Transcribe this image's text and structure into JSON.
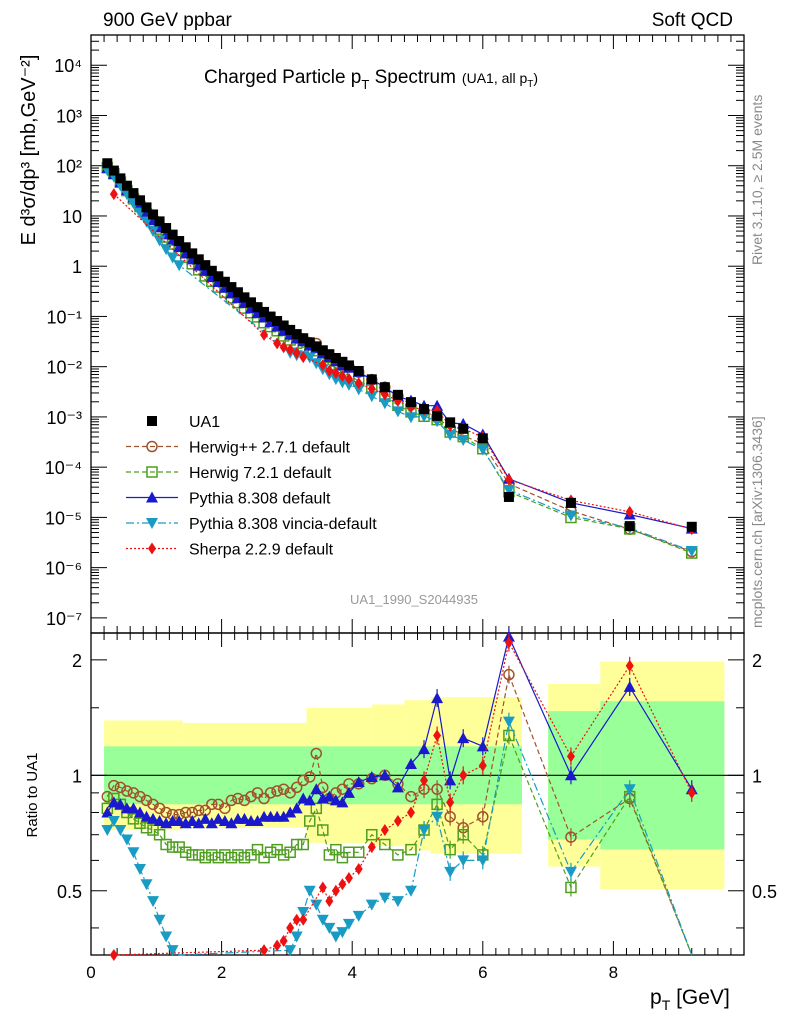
{
  "header": {
    "left": "900 GeV ppbar",
    "right": "Soft QCD",
    "title": "Charged Particle p",
    "title_sub": "T",
    "title_tail": " Spectrum",
    "title_small": "(UA1, all p",
    "title_small_sub": "T",
    "title_small_tail": ")"
  },
  "side": {
    "rivet": "Rivet 3.1.10, ≥ 2.5M events",
    "mcplots": "mcplots.cern.ch [arXiv:1306.3436]"
  },
  "analysis_label": "UA1_1990_S2044935",
  "axes": {
    "ylabel_main": "E d³σ/dp³ [mb,GeV⁻²]",
    "ylabel_ratio": "Ratio to UA1",
    "xlabel": "p",
    "xlabel_sub": "T",
    "xlabel_tail": " [GeV]"
  },
  "chart_data": {
    "type": "scatter",
    "xlim": [
      0,
      10
    ],
    "main_ylim": [
      5e-08,
      40000
    ],
    "main_yscale": "log",
    "ratio_ylim": [
      0.34,
      2.35
    ],
    "ratio_yscale": "log",
    "main_yticks": [
      "10⁻⁷",
      "10⁻⁶",
      "10⁻⁵",
      "10⁻⁴",
      "10⁻³",
      "10⁻²",
      "10⁻¹",
      "1",
      "10",
      "10²",
      "10³",
      "10⁴"
    ],
    "ratio_yticks": [
      "0.5",
      "1",
      "2"
    ],
    "xticks": [
      "0",
      "2",
      "4",
      "6",
      "8"
    ],
    "legend_position": "center-left",
    "reference": {
      "name": "UA1",
      "x": [
        0.25,
        0.35,
        0.45,
        0.55,
        0.65,
        0.75,
        0.85,
        0.95,
        1.05,
        1.15,
        1.25,
        1.35,
        1.45,
        1.55,
        1.65,
        1.75,
        1.85,
        1.95,
        2.05,
        2.15,
        2.25,
        2.35,
        2.45,
        2.55,
        2.65,
        2.75,
        2.85,
        2.95,
        3.05,
        3.15,
        3.25,
        3.35,
        3.45,
        3.55,
        3.65,
        3.75,
        3.85,
        3.95,
        4.1,
        4.3,
        4.5,
        4.7,
        4.9,
        5.1,
        5.3,
        5.5,
        5.7,
        6.0,
        6.4,
        7.35,
        8.25,
        9.2
      ],
      "y": [
        112,
        80,
        56,
        40,
        28.5,
        20.5,
        14.8,
        10.7,
        7.8,
        5.75,
        4.25,
        3.17,
        2.38,
        1.8,
        1.37,
        1.05,
        0.81,
        0.63,
        0.49,
        0.384,
        0.303,
        0.24,
        0.191,
        0.153,
        0.123,
        0.0995,
        0.081,
        0.066,
        0.054,
        0.0445,
        0.0368,
        0.0305,
        0.0254,
        0.0212,
        0.0177,
        0.0149,
        0.0125,
        0.0106,
        0.0082,
        0.0056,
        0.0039,
        0.00275,
        0.00197,
        0.00143,
        0.00105,
        0.00078,
        0.00058,
        0.000375,
        2.55e-05,
        1.95e-05,
        6.7e-06,
        6.5e-06
      ],
      "band_inner": [
        [
          0.2,
          5.2,
          1.19
        ],
        [
          5.2,
          5.5,
          1.19
        ],
        [
          5.5,
          6.6,
          1.19
        ],
        [
          7,
          7.8,
          1.47
        ],
        [
          7.8,
          9.7,
          1.56
        ]
      ]
    },
    "series": [
      {
        "name": "Herwig++ 2.7.1 default",
        "color": "#a0522d",
        "marker": "open-circle",
        "dash": "5,3",
        "ratio_points": [
          [
            0.25,
            0.88
          ],
          [
            0.35,
            0.94
          ],
          [
            0.45,
            0.93
          ],
          [
            0.55,
            0.91
          ],
          [
            0.65,
            0.9
          ],
          [
            0.75,
            0.88
          ],
          [
            0.85,
            0.86
          ],
          [
            0.95,
            0.84
          ],
          [
            1.05,
            0.82
          ],
          [
            1.15,
            0.8
          ],
          [
            1.25,
            0.79
          ],
          [
            1.35,
            0.79
          ],
          [
            1.45,
            0.8
          ],
          [
            1.55,
            0.8
          ],
          [
            1.65,
            0.81
          ],
          [
            1.75,
            0.81
          ],
          [
            1.85,
            0.84
          ],
          [
            1.95,
            0.84
          ],
          [
            2.05,
            0.82
          ],
          [
            2.15,
            0.86
          ],
          [
            2.25,
            0.87
          ],
          [
            2.35,
            0.86
          ],
          [
            2.45,
            0.88
          ],
          [
            2.55,
            0.9
          ],
          [
            2.65,
            0.87
          ],
          [
            2.75,
            0.9
          ],
          [
            2.85,
            0.91
          ],
          [
            2.95,
            0.92
          ],
          [
            3.05,
            0.9
          ],
          [
            3.15,
            0.93
          ],
          [
            3.25,
            0.97
          ],
          [
            3.35,
            0.99
          ],
          [
            3.45,
            1.14
          ],
          [
            3.55,
            0.93
          ],
          [
            3.65,
            0.87
          ],
          [
            3.75,
            0.9
          ],
          [
            3.85,
            0.92
          ],
          [
            3.95,
            0.95
          ],
          [
            4.1,
            0.95
          ],
          [
            4.3,
            0.98
          ],
          [
            4.5,
            1.0
          ],
          [
            4.7,
            0.95
          ],
          [
            4.9,
            0.88
          ],
          [
            5.1,
            0.92
          ],
          [
            5.3,
            0.92
          ],
          [
            5.5,
            0.78
          ],
          [
            5.7,
            0.73
          ],
          [
            6.0,
            0.78
          ],
          [
            6.4,
            1.83
          ],
          [
            7.35,
            0.69
          ],
          [
            8.25,
            0.87
          ],
          [
            9.2,
            0.32
          ]
        ]
      },
      {
        "name": "Herwig 7.2.1 default",
        "color": "#4f9e1f",
        "marker": "open-square",
        "dash": "5,3",
        "ratio_points": [
          [
            0.25,
            0.82
          ],
          [
            0.35,
            0.87
          ],
          [
            0.45,
            0.84
          ],
          [
            0.55,
            0.8
          ],
          [
            0.65,
            0.77
          ],
          [
            0.75,
            0.75
          ],
          [
            0.85,
            0.73
          ],
          [
            0.95,
            0.72
          ],
          [
            1.05,
            0.7
          ],
          [
            1.15,
            0.66
          ],
          [
            1.25,
            0.65
          ],
          [
            1.35,
            0.65
          ],
          [
            1.45,
            0.63
          ],
          [
            1.55,
            0.62
          ],
          [
            1.65,
            0.62
          ],
          [
            1.75,
            0.61
          ],
          [
            1.85,
            0.62
          ],
          [
            1.95,
            0.61
          ],
          [
            2.05,
            0.62
          ],
          [
            2.15,
            0.61
          ],
          [
            2.25,
            0.62
          ],
          [
            2.35,
            0.61
          ],
          [
            2.45,
            0.62
          ],
          [
            2.55,
            0.64
          ],
          [
            2.65,
            0.61
          ],
          [
            2.75,
            0.63
          ],
          [
            2.85,
            0.64
          ],
          [
            2.95,
            0.62
          ],
          [
            3.05,
            0.63
          ],
          [
            3.15,
            0.66
          ],
          [
            3.25,
            0.66
          ],
          [
            3.35,
            0.76
          ],
          [
            3.45,
            0.82
          ],
          [
            3.55,
            0.72
          ],
          [
            3.65,
            0.62
          ],
          [
            3.75,
            0.64
          ],
          [
            3.85,
            0.61
          ],
          [
            3.95,
            0.63
          ],
          [
            4.1,
            0.63
          ],
          [
            4.3,
            0.7
          ],
          [
            4.5,
            0.66
          ],
          [
            4.7,
            0.62
          ],
          [
            4.9,
            0.64
          ],
          [
            5.1,
            0.72
          ],
          [
            5.3,
            0.84
          ],
          [
            5.5,
            0.64
          ],
          [
            5.7,
            0.7
          ],
          [
            6.0,
            0.62
          ],
          [
            6.4,
            1.27
          ],
          [
            7.35,
            0.51
          ],
          [
            8.25,
            0.88
          ],
          [
            9.2,
            0.3
          ]
        ]
      },
      {
        "name": "Pythia 8.308 default",
        "color": "#1a1acc",
        "marker": "filled-triangle-up",
        "dash": "",
        "ratio_points": [
          [
            0.25,
            0.8
          ],
          [
            0.35,
            0.85
          ],
          [
            0.45,
            0.84
          ],
          [
            0.55,
            0.82
          ],
          [
            0.65,
            0.82
          ],
          [
            0.75,
            0.8
          ],
          [
            0.85,
            0.78
          ],
          [
            0.95,
            0.77
          ],
          [
            1.05,
            0.76
          ],
          [
            1.15,
            0.75
          ],
          [
            1.25,
            0.76
          ],
          [
            1.35,
            0.76
          ],
          [
            1.45,
            0.75
          ],
          [
            1.55,
            0.76
          ],
          [
            1.65,
            0.75
          ],
          [
            1.75,
            0.77
          ],
          [
            1.85,
            0.75
          ],
          [
            1.95,
            0.77
          ],
          [
            2.05,
            0.76
          ],
          [
            2.15,
            0.75
          ],
          [
            2.25,
            0.77
          ],
          [
            2.35,
            0.77
          ],
          [
            2.45,
            0.76
          ],
          [
            2.55,
            0.76
          ],
          [
            2.65,
            0.78
          ],
          [
            2.75,
            0.78
          ],
          [
            2.85,
            0.78
          ],
          [
            2.95,
            0.78
          ],
          [
            3.05,
            0.8
          ],
          [
            3.15,
            0.82
          ],
          [
            3.25,
            0.87
          ],
          [
            3.35,
            0.86
          ],
          [
            3.45,
            0.92
          ],
          [
            3.55,
            0.87
          ],
          [
            3.65,
            0.88
          ],
          [
            3.75,
            0.86
          ],
          [
            3.85,
            0.85
          ],
          [
            3.95,
            0.9
          ],
          [
            4.1,
            0.96
          ],
          [
            4.3,
            0.99
          ],
          [
            4.5,
            1.0
          ],
          [
            4.7,
            0.93
          ],
          [
            4.9,
            1.07
          ],
          [
            5.1,
            1.17
          ],
          [
            5.3,
            1.59
          ],
          [
            5.5,
            0.97
          ],
          [
            5.7,
            1.25
          ],
          [
            6.0,
            1.19
          ],
          [
            6.4,
            2.3
          ],
          [
            7.35,
            1.0
          ],
          [
            8.25,
            1.7
          ],
          [
            9.2,
            0.92
          ]
        ]
      },
      {
        "name": "Pythia 8.308 vincia-default",
        "color": "#1a9bc4",
        "marker": "filled-triangle-down",
        "dash": "8,3,2,3",
        "ratio_points": [
          [
            0.25,
            0.72
          ],
          [
            0.35,
            0.76
          ],
          [
            0.45,
            0.72
          ],
          [
            0.55,
            0.68
          ],
          [
            0.65,
            0.63
          ],
          [
            0.75,
            0.57
          ],
          [
            0.85,
            0.52
          ],
          [
            0.95,
            0.47
          ],
          [
            1.05,
            0.42
          ],
          [
            1.15,
            0.38
          ],
          [
            1.25,
            0.35
          ],
          [
            1.35,
            0.33
          ],
          [
            3.05,
            0.35
          ],
          [
            3.15,
            0.38
          ],
          [
            3.25,
            0.44
          ],
          [
            3.35,
            0.5
          ],
          [
            3.45,
            0.46
          ],
          [
            3.55,
            0.42
          ],
          [
            3.65,
            0.4
          ],
          [
            3.75,
            0.38
          ],
          [
            3.85,
            0.39
          ],
          [
            3.95,
            0.41
          ],
          [
            4.1,
            0.43
          ],
          [
            4.3,
            0.46
          ],
          [
            4.5,
            0.48
          ],
          [
            4.7,
            0.47
          ],
          [
            4.9,
            0.5
          ],
          [
            5.1,
            0.72
          ],
          [
            5.3,
            0.78
          ],
          [
            5.5,
            0.56
          ],
          [
            5.7,
            0.6
          ],
          [
            6.0,
            0.6
          ],
          [
            6.4,
            1.38
          ],
          [
            7.35,
            0.56
          ],
          [
            8.25,
            0.92
          ],
          [
            9.2,
            0.33
          ]
        ]
      },
      {
        "name": "Sherpa 2.2.9 default",
        "color": "#ee1111",
        "marker": "filled-diamond",
        "dash": "2,2",
        "ratio_points": [
          [
            0.35,
            0.34
          ],
          [
            2.65,
            0.35
          ],
          [
            2.85,
            0.36
          ],
          [
            2.95,
            0.37
          ],
          [
            3.05,
            0.4
          ],
          [
            3.15,
            0.42
          ],
          [
            3.25,
            0.42
          ],
          [
            3.55,
            0.51
          ],
          [
            3.65,
            0.47
          ],
          [
            3.75,
            0.5
          ],
          [
            3.85,
            0.52
          ],
          [
            3.95,
            0.54
          ],
          [
            4.1,
            0.57
          ],
          [
            4.3,
            0.65
          ],
          [
            4.5,
            0.72
          ],
          [
            4.7,
            0.76
          ],
          [
            4.9,
            0.8
          ],
          [
            5.1,
            0.97
          ],
          [
            5.3,
            1.27
          ],
          [
            5.5,
            0.85
          ],
          [
            5.7,
            1.0
          ],
          [
            6.0,
            1.06
          ],
          [
            6.4,
            2.22
          ],
          [
            7.35,
            1.12
          ],
          [
            8.25,
            1.93
          ],
          [
            9.2,
            0.9
          ]
        ]
      }
    ]
  }
}
